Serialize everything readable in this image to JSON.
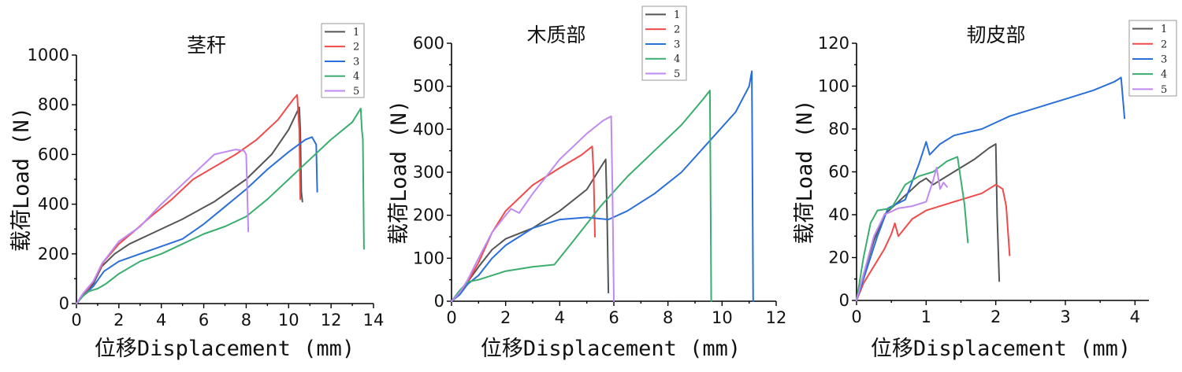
{
  "colors": {
    "1": "#555555",
    "2": "#f04a4a",
    "3": "#2a6fd9",
    "4": "#3aae6e",
    "5": "#c089f0"
  },
  "chart_data": [
    {
      "type": "line",
      "title": "茎秆",
      "xlabel": "位移Displacement (mm)",
      "ylabel": "载荷Load (N)",
      "xlim": [
        0,
        14
      ],
      "ylim": [
        0,
        1000
      ],
      "xticks": [
        "0",
        "2",
        "4",
        "6",
        "8",
        "10",
        "12",
        "14"
      ],
      "yticks": [
        "0",
        "200",
        "400",
        "600",
        "800",
        "1000"
      ],
      "legend": [
        "1",
        "2",
        "3",
        "4",
        "5"
      ],
      "series": [
        {
          "name": "1",
          "x": [
            0,
            0.3,
            0.8,
            1.2,
            1.8,
            2.5,
            3.5,
            5,
            6.5,
            8,
            9.2,
            10,
            10.5,
            10.55,
            10.6,
            10.65
          ],
          "y": [
            0,
            30,
            80,
            150,
            200,
            240,
            280,
            340,
            410,
            500,
            600,
            700,
            790,
            700,
            450,
            410
          ]
        },
        {
          "name": "2",
          "x": [
            0,
            0.3,
            0.8,
            1.3,
            2,
            2.7,
            3.5,
            4.5,
            5.5,
            6.5,
            7.5,
            8.5,
            9.5,
            10.2,
            10.4,
            10.5,
            10.55
          ],
          "y": [
            0,
            30,
            90,
            170,
            240,
            290,
            350,
            420,
            500,
            550,
            600,
            660,
            740,
            820,
            840,
            700,
            420
          ]
        },
        {
          "name": "3",
          "x": [
            0,
            0.3,
            0.8,
            1.3,
            2,
            3,
            4,
            5,
            6,
            7,
            8,
            9,
            10,
            10.8,
            11.1,
            11.3,
            11.35
          ],
          "y": [
            0,
            30,
            70,
            130,
            170,
            200,
            230,
            260,
            320,
            390,
            460,
            540,
            610,
            660,
            670,
            640,
            450
          ]
        },
        {
          "name": "4",
          "x": [
            0,
            0.3,
            0.6,
            1,
            1.4,
            2,
            3,
            4,
            5,
            6,
            7,
            8,
            9,
            10,
            11,
            12,
            13,
            13.4,
            13.45,
            13.5,
            13.55
          ],
          "y": [
            0,
            30,
            50,
            60,
            80,
            120,
            170,
            200,
            240,
            280,
            310,
            350,
            420,
            500,
            580,
            660,
            730,
            785,
            700,
            660,
            220
          ]
        },
        {
          "name": "5",
          "x": [
            0,
            0.3,
            0.8,
            1.2,
            2,
            3,
            4,
            5,
            6,
            6.5,
            7,
            7.5,
            7.9,
            8,
            8.05,
            8.1
          ],
          "y": [
            0,
            40,
            90,
            160,
            250,
            310,
            400,
            480,
            560,
            600,
            610,
            620,
            615,
            600,
            450,
            290
          ]
        }
      ]
    },
    {
      "type": "line",
      "title": "木质部",
      "xlabel": "位移Displacement (mm)",
      "ylabel": "载荷Load (N)",
      "xlim": [
        0,
        12
      ],
      "ylim": [
        0,
        600
      ],
      "xticks": [
        "0",
        "2",
        "4",
        "6",
        "8",
        "10",
        "12"
      ],
      "yticks": [
        "0",
        "100",
        "200",
        "300",
        "400",
        "500",
        "600"
      ],
      "legend": [
        "1",
        "2",
        "3",
        "4",
        "5"
      ],
      "series": [
        {
          "name": "1",
          "x": [
            0,
            0.3,
            0.6,
            1,
            1.5,
            2,
            3,
            4,
            5,
            5.5,
            5.7,
            5.75,
            5.8
          ],
          "y": [
            0,
            20,
            45,
            80,
            120,
            145,
            170,
            210,
            260,
            310,
            330,
            200,
            20
          ]
        },
        {
          "name": "2",
          "x": [
            0,
            0.3,
            0.6,
            1,
            1.5,
            2,
            3,
            4,
            4.8,
            5.2,
            5.25,
            5.3
          ],
          "y": [
            0,
            20,
            45,
            90,
            160,
            210,
            270,
            310,
            340,
            360,
            300,
            150
          ]
        },
        {
          "name": "3",
          "x": [
            0,
            0.3,
            0.6,
            1,
            1.5,
            2,
            3,
            4,
            5,
            5.8,
            6.5,
            7.5,
            8.5,
            9.5,
            10.5,
            11,
            11.1,
            11.15
          ],
          "y": [
            0,
            15,
            40,
            60,
            100,
            130,
            170,
            190,
            195,
            190,
            210,
            250,
            300,
            370,
            440,
            500,
            535,
            0
          ]
        },
        {
          "name": "4",
          "x": [
            0,
            0.3,
            0.6,
            1,
            1.5,
            2,
            3,
            3.8,
            4.5,
            5.5,
            6.5,
            7.5,
            8.5,
            9.3,
            9.55,
            9.6
          ],
          "y": [
            0,
            25,
            45,
            50,
            60,
            70,
            80,
            85,
            140,
            220,
            290,
            350,
            410,
            470,
            490,
            0
          ]
        },
        {
          "name": "5",
          "x": [
            0,
            0.3,
            0.6,
            1,
            1.5,
            2,
            2.2,
            2.5,
            3,
            4,
            5,
            5.6,
            5.9,
            5.95,
            6
          ],
          "y": [
            0,
            20,
            50,
            100,
            160,
            200,
            215,
            205,
            250,
            330,
            390,
            420,
            430,
            250,
            0
          ]
        }
      ]
    },
    {
      "type": "line",
      "title": "韧皮部",
      "xlabel": "位移Displacement (mm)",
      "ylabel": "载荷Load (N)",
      "xlim": [
        0,
        4.2
      ],
      "ylim": [
        0,
        120
      ],
      "xticks": [
        "0",
        "1",
        "2",
        "3",
        "4"
      ],
      "yticks": [
        "0",
        "20",
        "40",
        "60",
        "80",
        "100",
        "120"
      ],
      "legend": [
        "1",
        "2",
        "3",
        "4",
        "5"
      ],
      "series": [
        {
          "name": "1",
          "x": [
            0,
            0.1,
            0.25,
            0.4,
            0.6,
            0.8,
            0.9,
            1,
            1.1,
            1.3,
            1.5,
            1.7,
            1.9,
            2,
            2.02,
            2.05
          ],
          "y": [
            0,
            12,
            28,
            40,
            46,
            52,
            55,
            57,
            54,
            58,
            62,
            66,
            71,
            73,
            40,
            9
          ]
        },
        {
          "name": "2",
          "x": [
            0,
            0.1,
            0.25,
            0.4,
            0.5,
            0.55,
            0.6,
            0.7,
            0.8,
            1,
            1.2,
            1.5,
            1.8,
            2,
            2.1,
            2.15,
            2.2
          ],
          "y": [
            0,
            8,
            16,
            24,
            31,
            36,
            30,
            34,
            38,
            42,
            44,
            47,
            50,
            54,
            52,
            44,
            21
          ]
        },
        {
          "name": "3",
          "x": [
            0,
            0.1,
            0.3,
            0.45,
            0.7,
            0.9,
            1,
            1.05,
            1.2,
            1.4,
            1.8,
            2.2,
            2.6,
            3,
            3.4,
            3.7,
            3.8,
            3.85
          ],
          "y": [
            0,
            10,
            30,
            43,
            47,
            64,
            74,
            68,
            73,
            77,
            80,
            86,
            90,
            94,
            98,
            102,
            104,
            85
          ]
        },
        {
          "name": "4",
          "x": [
            0,
            0.1,
            0.2,
            0.3,
            0.5,
            0.7,
            0.9,
            1.1,
            1.3,
            1.45,
            1.55,
            1.6
          ],
          "y": [
            0,
            20,
            36,
            42,
            43,
            54,
            58,
            60,
            65,
            67,
            45,
            27
          ]
        },
        {
          "name": "5",
          "x": [
            0,
            0.1,
            0.25,
            0.4,
            0.6,
            0.8,
            1,
            1.1,
            1.15,
            1.2,
            1.25,
            1.3
          ],
          "y": [
            0,
            12,
            30,
            40,
            43,
            44,
            46,
            56,
            62,
            52,
            55,
            53
          ]
        }
      ]
    }
  ]
}
